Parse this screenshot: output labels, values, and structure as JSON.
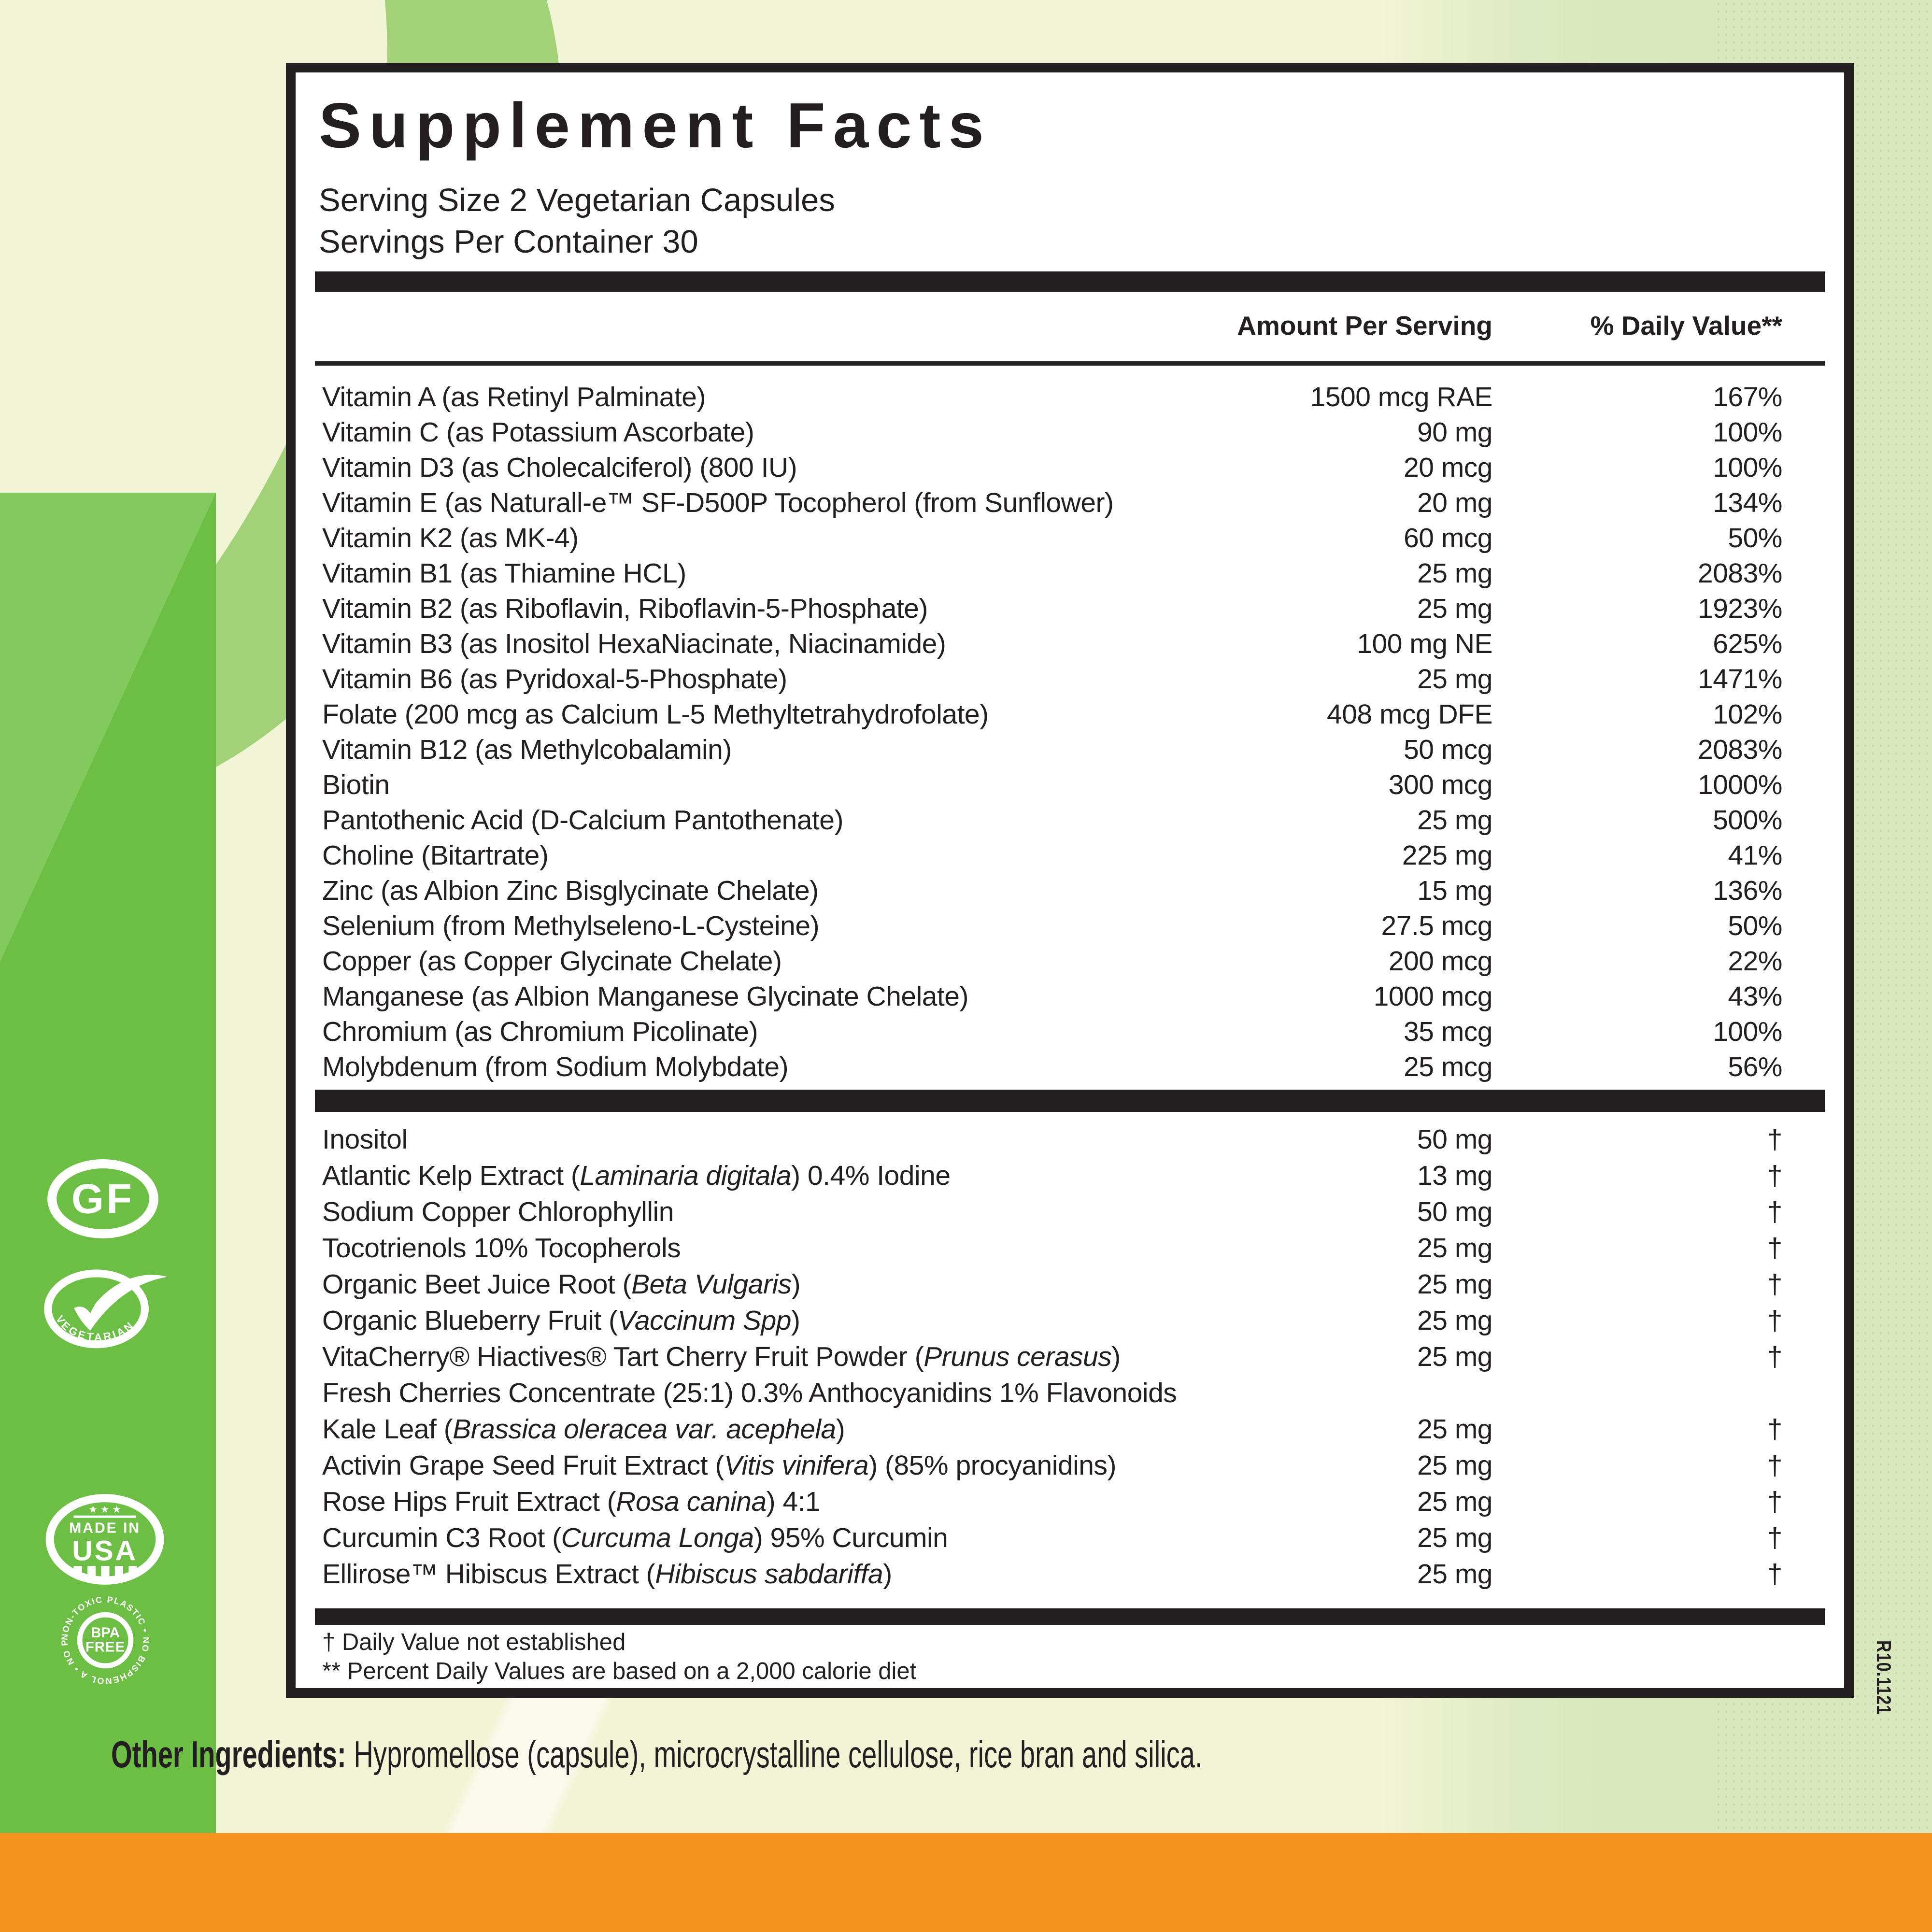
{
  "panel": {
    "title": "Supplement Facts",
    "serving_size": "Serving Size 2 Vegetarian Capsules",
    "servings_per": "Servings Per Container 30",
    "col_amount": "Amount Per Serving",
    "col_dv": "% Daily Value**",
    "section1": {
      "rows": [
        {
          "name": [
            {
              "t": "Vitamin A (as Retinyl Palminate)"
            }
          ],
          "amt": "1500 mcg RAE",
          "dv": "167%"
        },
        {
          "name": [
            {
              "t": "Vitamin C (as Potassium Ascorbate)"
            }
          ],
          "amt": "90 mg",
          "dv": "100%"
        },
        {
          "name": [
            {
              "t": "Vitamin D3 (as Cholecalciferol)  (800 IU)"
            }
          ],
          "amt": "20 mcg",
          "dv": "100%"
        },
        {
          "name": [
            {
              "t": "Vitamin E (as Naturall-e™ SF-D500P Tocopherol (from Sunflower)"
            }
          ],
          "amt": "20 mg",
          "dv": "134%"
        },
        {
          "name": [
            {
              "t": "Vitamin K2 (as MK-4)"
            }
          ],
          "amt": "60 mcg",
          "dv": "50%"
        },
        {
          "name": [
            {
              "t": "Vitamin B1 (as Thiamine HCL)"
            }
          ],
          "amt": "25 mg",
          "dv": "2083%"
        },
        {
          "name": [
            {
              "t": "Vitamin B2 (as Riboflavin, Riboflavin-5-Phosphate)"
            }
          ],
          "amt": "25 mg",
          "dv": "1923%"
        },
        {
          "name": [
            {
              "t": "Vitamin B3 (as Inositol HexaNiacinate, Niacinamide)"
            }
          ],
          "amt": "100 mg NE",
          "dv": "625%"
        },
        {
          "name": [
            {
              "t": "Vitamin B6 (as Pyridoxal-5-Phosphate)"
            }
          ],
          "amt": "25 mg",
          "dv": "1471%"
        },
        {
          "name": [
            {
              "t": "Folate (200 mcg as Calcium L-5 Methyltetrahydrofolate)"
            }
          ],
          "amt": "408 mcg DFE",
          "dv": "102%"
        },
        {
          "name": [
            {
              "t": "Vitamin B12 (as Methylcobalamin)"
            }
          ],
          "amt": "50 mcg",
          "dv": "2083%"
        },
        {
          "name": [
            {
              "t": "Biotin"
            }
          ],
          "amt": "300 mcg",
          "dv": "1000%"
        },
        {
          "name": [
            {
              "t": "Pantothenic Acid (D-Calcium Pantothenate)"
            }
          ],
          "amt": "25 mg",
          "dv": "500%"
        },
        {
          "name": [
            {
              "t": "Choline (Bitartrate)"
            }
          ],
          "amt": "225 mg",
          "dv": "41%"
        },
        {
          "name": [
            {
              "t": "Zinc (as Albion Zinc Bisglycinate Chelate)"
            }
          ],
          "amt": "15 mg",
          "dv": "136%"
        },
        {
          "name": [
            {
              "t": "Selenium (from Methylseleno-L-Cysteine)"
            }
          ],
          "amt": "27.5 mcg",
          "dv": "50%"
        },
        {
          "name": [
            {
              "t": "Copper (as Copper Glycinate Chelate)"
            }
          ],
          "amt": "200 mcg",
          "dv": "22%"
        },
        {
          "name": [
            {
              "t": "Manganese (as Albion Manganese Glycinate Chelate)"
            }
          ],
          "amt": "1000 mcg",
          "dv": "43%"
        },
        {
          "name": [
            {
              "t": "Chromium (as Chromium Picolinate)"
            }
          ],
          "amt": "35 mcg",
          "dv": "100%"
        },
        {
          "name": [
            {
              "t": "Molybdenum (from Sodium Molybdate)"
            }
          ],
          "amt": "25 mcg",
          "dv": "56%"
        }
      ]
    },
    "section2": {
      "rows": [
        {
          "name": [
            {
              "t": "Inositol"
            }
          ],
          "amt": "50 mg",
          "dv": "†"
        },
        {
          "name": [
            {
              "t": "Atlantic Kelp Extract ("
            },
            {
              "t": "Laminaria digitala",
              "i": true
            },
            {
              "t": ") 0.4% Iodine"
            }
          ],
          "amt": "13 mg",
          "dv": "†"
        },
        {
          "name": [
            {
              "t": "Sodium Copper Chlorophyllin"
            }
          ],
          "amt": "50 mg",
          "dv": "†"
        },
        {
          "name": [
            {
              "t": "Tocotrienols 10% Tocopherols"
            }
          ],
          "amt": "25 mg",
          "dv": "†"
        },
        {
          "name": [
            {
              "t": "Organic Beet Juice Root ("
            },
            {
              "t": "Beta Vulgaris",
              "i": true
            },
            {
              "t": ")"
            }
          ],
          "amt": "25 mg",
          "dv": "†"
        },
        {
          "name": [
            {
              "t": "Organic Blueberry Fruit ("
            },
            {
              "t": "Vaccinum Spp",
              "i": true
            },
            {
              "t": ")"
            }
          ],
          "amt": "25 mg",
          "dv": "†"
        },
        {
          "name": [
            {
              "t": "VitaCherry® Hiactives® Tart Cherry Fruit Powder ("
            },
            {
              "t": "Prunus cerasus",
              "i": true
            },
            {
              "t": ")"
            }
          ],
          "amt": "25 mg",
          "dv": "†"
        },
        {
          "name": [
            {
              "t": "Fresh Cherries Concentrate (25:1) 0.3% Anthocyanidins 1% Flavonoids"
            }
          ],
          "amt": "",
          "dv": ""
        },
        {
          "name": [
            {
              "t": "Kale Leaf ("
            },
            {
              "t": "Brassica oleracea var. acephela",
              "i": true
            },
            {
              "t": ")"
            }
          ],
          "amt": "25 mg",
          "dv": "†"
        },
        {
          "name": [
            {
              "t": "Activin Grape Seed Fruit Extract ("
            },
            {
              "t": "Vitis vinifera",
              "i": true
            },
            {
              "t": ") (85% procyanidins)"
            }
          ],
          "amt": "25 mg",
          "dv": "†"
        },
        {
          "name": [
            {
              "t": "Rose Hips Fruit Extract ("
            },
            {
              "t": "Rosa canina",
              "i": true
            },
            {
              "t": ") 4:1"
            }
          ],
          "amt": "25 mg",
          "dv": "†"
        },
        {
          "name": [
            {
              "t": "Curcumin C3 Root ("
            },
            {
              "t": "Curcuma Longa",
              "i": true
            },
            {
              "t": ") 95% Curcumin"
            }
          ],
          "amt": "25 mg",
          "dv": "†"
        },
        {
          "name": [
            {
              "t": "Ellirose™ Hibiscus Extract ("
            },
            {
              "t": "Hibiscus sabdariffa",
              "i": true
            },
            {
              "t": ")"
            }
          ],
          "amt": "25 mg",
          "dv": "†"
        }
      ]
    },
    "footnote1": "† Daily Value not established",
    "footnote2": "** Percent Daily Values are based on a 2,000 calorie diet"
  },
  "other_ingredients": {
    "label": "Other Ingredients:",
    "text": " Hypromellose (capsule), microcrystalline cellulose, rice bran and silica."
  },
  "side_code": "R10.1121",
  "badges": {
    "gf": "GF",
    "vegetarian": "VEGETARIAN",
    "made_in": "MADE IN",
    "usa": "USA",
    "stars": "★ ★ ★",
    "bpa_top": "BPA",
    "bpa_bottom": "FREE",
    "bpa_ring": "NON-TOXIC PLASTIC • NO BISPHENOL A • NO PHOSPHATES •"
  },
  "colors": {
    "strip_green": "#6cbe45",
    "swirl_green": "#a2d178",
    "pale_cream": "#f2f4d6",
    "pale_green_panel": "#d8e7bc",
    "orange": "#f6921e",
    "ink": "#231f20"
  }
}
